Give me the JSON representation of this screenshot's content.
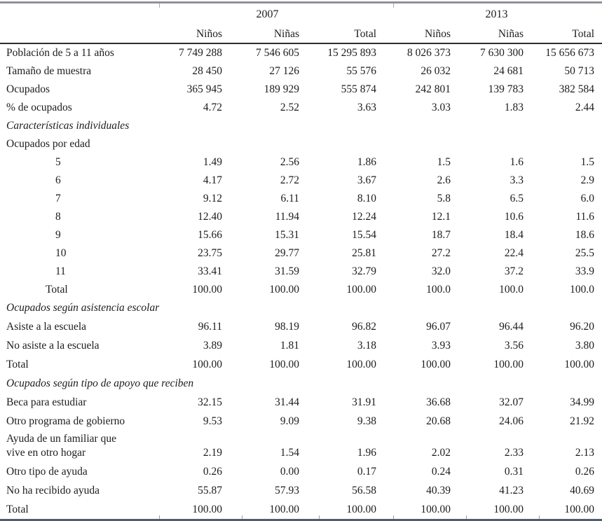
{
  "table": {
    "year_groups": [
      "2007",
      "2013"
    ],
    "sub_headers": [
      "Niños",
      "Niñas",
      "Total",
      "Niños",
      "Niñas",
      "Total"
    ],
    "rows": [
      {
        "label": "Población de 5 a 11 años",
        "type": "data",
        "values": [
          "7 749 288",
          "7 546 605",
          "15 295 893",
          "8 026 373",
          "7 630 300",
          "15 656 673"
        ]
      },
      {
        "label": "Tamaño de muestra",
        "type": "data",
        "values": [
          "28 450",
          "27 126",
          "55 576",
          "26 032",
          "24 681",
          "50 713"
        ]
      },
      {
        "label": "Ocupados",
        "type": "data",
        "values": [
          "365 945",
          "189 929",
          "555 874",
          "242 801",
          "139 783",
          "382 584"
        ]
      },
      {
        "label": "% de ocupados",
        "type": "data",
        "values": [
          "4.72",
          "2.52",
          "3.63",
          "3.03",
          "1.83",
          "2.44"
        ]
      },
      {
        "label": "Características individuales",
        "type": "section"
      },
      {
        "label": "Ocupados por edad",
        "type": "subsection"
      },
      {
        "label": "5",
        "type": "data",
        "indent": "age",
        "values": [
          "1.49",
          "2.56",
          "1.86",
          "1.5",
          "1.6",
          "1.5"
        ]
      },
      {
        "label": "6",
        "type": "data",
        "indent": "age",
        "values": [
          "4.17",
          "2.72",
          "3.67",
          "2.6",
          "3.3",
          "2.9"
        ]
      },
      {
        "label": "7",
        "type": "data",
        "indent": "age",
        "values": [
          "9.12",
          "6.11",
          "8.10",
          "5.8",
          "6.5",
          "6.0"
        ]
      },
      {
        "label": "8",
        "type": "data",
        "indent": "age",
        "values": [
          "12.40",
          "11.94",
          "12.24",
          "12.1",
          "10.6",
          "11.6"
        ]
      },
      {
        "label": "9",
        "type": "data",
        "indent": "age",
        "values": [
          "15.66",
          "15.31",
          "15.54",
          "18.7",
          "18.4",
          "18.6"
        ]
      },
      {
        "label": "10",
        "type": "data",
        "indent": "age",
        "values": [
          "23.75",
          "29.77",
          "25.81",
          "27.2",
          "22.4",
          "25.5"
        ]
      },
      {
        "label": "11",
        "type": "data",
        "indent": "age",
        "values": [
          "33.41",
          "31.59",
          "32.79",
          "32.0",
          "37.2",
          "33.9"
        ]
      },
      {
        "label": "Total",
        "type": "data",
        "indent": "total",
        "values": [
          "100.00",
          "100.00",
          "100.00",
          "100.0",
          "100.0",
          "100.0"
        ]
      },
      {
        "label": "Ocupados según asistencia escolar",
        "type": "section"
      },
      {
        "label": "Asiste a la escuela",
        "type": "data",
        "values": [
          "96.11",
          "98.19",
          "96.82",
          "96.07",
          "96.44",
          "96.20"
        ]
      },
      {
        "label": "No asiste a la escuela",
        "type": "data",
        "values": [
          "3.89",
          "1.81",
          "3.18",
          "3.93",
          "3.56",
          "3.80"
        ]
      },
      {
        "label": "Total",
        "type": "data",
        "values": [
          "100.00",
          "100.00",
          "100.00",
          "100.00",
          "100.00",
          "100.00"
        ]
      },
      {
        "label": "Ocupados según tipo de apoyo que reciben",
        "type": "section"
      },
      {
        "label": "Beca para estudiar",
        "type": "data",
        "values": [
          "32.15",
          "31.44",
          "31.91",
          "36.68",
          "32.07",
          "34.99"
        ]
      },
      {
        "label": "Otro programa de gobierno",
        "type": "data",
        "values": [
          "9.53",
          "9.09",
          "9.38",
          "20.68",
          "24.06",
          "21.92"
        ]
      },
      {
        "label": "Ayuda de un familiar que\nvive en otro hogar",
        "type": "data",
        "values": [
          "2.19",
          "1.54",
          "1.96",
          "2.02",
          "2.33",
          "2.13"
        ]
      },
      {
        "label": "Otro tipo de ayuda",
        "type": "data",
        "values": [
          "0.26",
          "0.00",
          "0.17",
          "0.24",
          "0.31",
          "0.26"
        ]
      },
      {
        "label": "No ha recibido ayuda",
        "type": "data",
        "values": [
          "55.87",
          "57.93",
          "56.58",
          "40.39",
          "41.23",
          "40.69"
        ]
      },
      {
        "label": "Total",
        "type": "data",
        "values": [
          "100.00",
          "100.00",
          "100.00",
          "100.00",
          "100.00",
          "100.00"
        ]
      }
    ]
  },
  "colors": {
    "text": "#1c1c1c",
    "top_rule": "#8f9398",
    "header_rule": "#2e2e2e",
    "bottom_rule": "#525d6b",
    "background": "#ffffff"
  }
}
